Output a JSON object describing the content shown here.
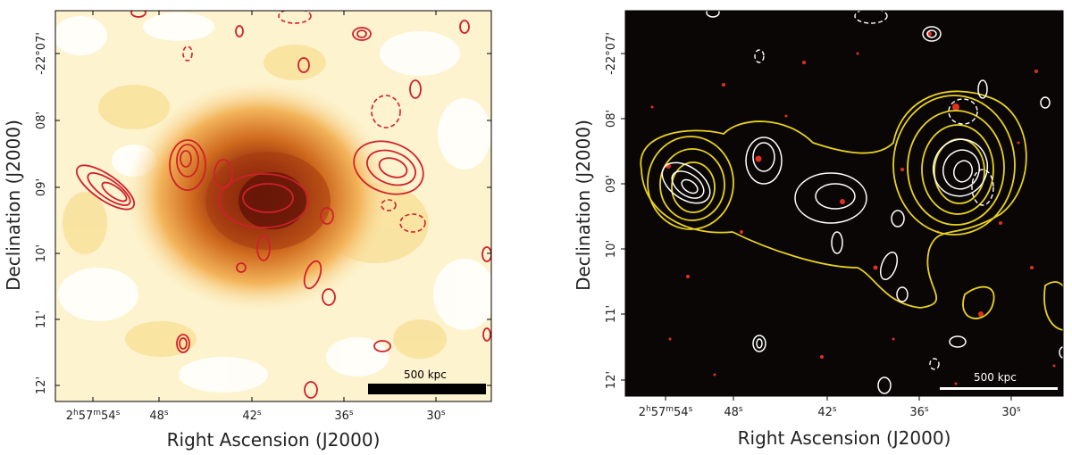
{
  "figure": {
    "left_panel": {
      "image_name": "xray-surface-brightness-map",
      "contour_color": "#d0202a",
      "scalebar_label": "500 kpc",
      "scalebar_color": "#000000"
    },
    "right_panel": {
      "image_name": "optical-composite-image",
      "radio_contour_color": "#ffffff",
      "xray_contour_color": "#e8d21c",
      "scalebar_label": "500 kpc",
      "scalebar_color": "#ffffff"
    }
  },
  "axes": {
    "xlabel": "Right Ascension (J2000)",
    "ylabel": "Declination (J2000)",
    "x_ticks": [
      "2h57m54s",
      "48s",
      "42s",
      "36s",
      "30s"
    ],
    "y_top_tick": "-22°07'",
    "y_ticks": [
      "-22°07'",
      "08'",
      "09'",
      "10'",
      "11'",
      "12'"
    ]
  },
  "colors": {
    "xray_peak": "#6b1608",
    "xray_mid": "#d9731f",
    "xray_low": "#fbe8a8",
    "sky_background": "#0a0606",
    "star_red": "#e03020"
  }
}
